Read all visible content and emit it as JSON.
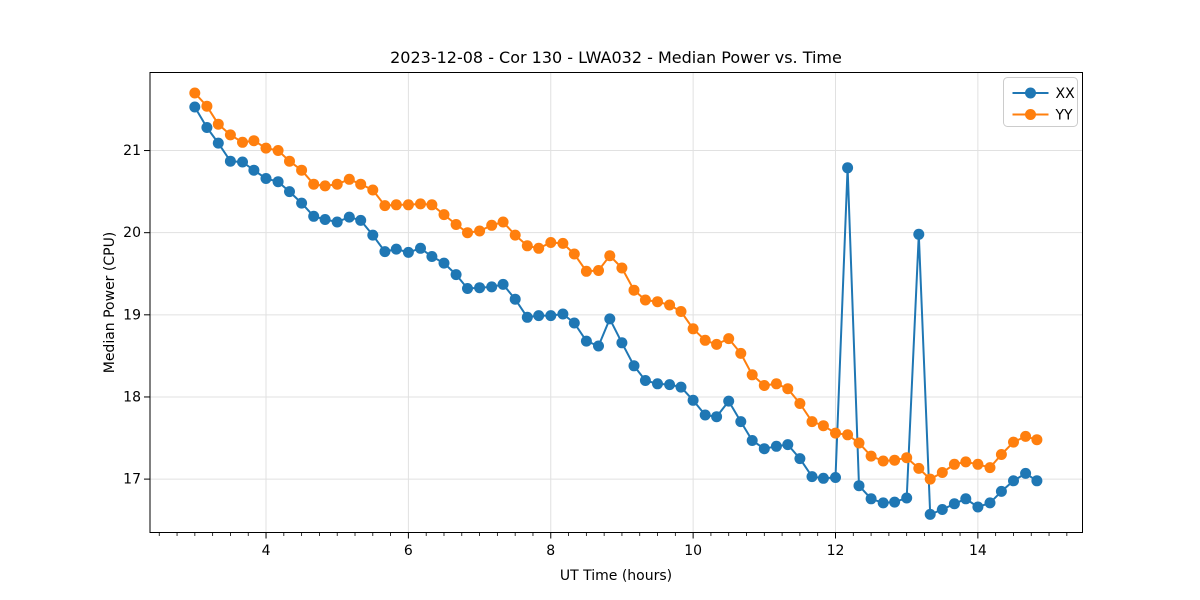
{
  "page": {
    "background": "#ffffff"
  },
  "chart_data": {
    "type": "line",
    "title": "2023-12-08 - Cor 130 - LWA032 - Median Power vs. Time",
    "xlabel": "UT Time (hours)",
    "ylabel": "Median Power (CPU)",
    "xlim": [
      2.37,
      15.47
    ],
    "ylim": [
      16.35,
      21.95
    ],
    "xticks": [
      4,
      6,
      8,
      10,
      12,
      14
    ],
    "yticks": [
      17,
      18,
      19,
      20,
      21
    ],
    "x_minor_step": 0.25,
    "grid": true,
    "grid_color": "#e1e1e1",
    "legend": {
      "position": "upper right",
      "entries": [
        "XX",
        "YY"
      ]
    },
    "x": [
      3.0,
      3.17,
      3.33,
      3.5,
      3.67,
      3.83,
      4.0,
      4.17,
      4.33,
      4.5,
      4.67,
      4.83,
      5.0,
      5.17,
      5.33,
      5.5,
      5.67,
      5.83,
      6.0,
      6.17,
      6.33,
      6.5,
      6.67,
      6.83,
      7.0,
      7.17,
      7.33,
      7.5,
      7.67,
      7.83,
      8.0,
      8.17,
      8.33,
      8.5,
      8.67,
      8.83,
      9.0,
      9.17,
      9.33,
      9.5,
      9.67,
      9.83,
      10.0,
      10.17,
      10.33,
      10.5,
      10.67,
      10.83,
      11.0,
      11.17,
      11.33,
      11.5,
      11.67,
      11.83,
      12.0,
      12.17,
      12.33,
      12.5,
      12.67,
      12.83,
      13.0,
      13.17,
      13.33,
      13.5,
      13.67,
      13.83,
      14.0,
      14.17,
      14.33,
      14.5,
      14.67,
      14.83
    ],
    "series": [
      {
        "name": "XX",
        "color": "#1f77b4",
        "marker": "circle",
        "values": [
          21.53,
          21.28,
          21.09,
          20.87,
          20.86,
          20.76,
          20.66,
          20.62,
          20.5,
          20.36,
          20.2,
          20.16,
          20.13,
          20.19,
          20.15,
          19.97,
          19.77,
          19.8,
          19.76,
          19.81,
          19.71,
          19.63,
          19.49,
          19.32,
          19.33,
          19.34,
          19.37,
          19.19,
          18.97,
          18.99,
          18.99,
          19.01,
          18.9,
          18.68,
          18.62,
          18.95,
          18.66,
          18.38,
          18.2,
          18.16,
          18.15,
          18.12,
          17.96,
          17.78,
          17.76,
          17.95,
          17.7,
          17.47,
          17.37,
          17.4,
          17.42,
          17.25,
          17.03,
          17.01,
          17.02,
          20.79,
          16.92,
          16.76,
          16.71,
          16.72,
          16.77,
          19.98,
          16.57,
          16.63,
          16.7,
          16.76,
          16.66,
          16.71,
          16.85,
          16.98,
          17.07,
          16.98
        ]
      },
      {
        "name": "YY",
        "color": "#ff7f0e",
        "marker": "circle",
        "values": [
          21.7,
          21.54,
          21.32,
          21.19,
          21.1,
          21.12,
          21.03,
          21.0,
          20.87,
          20.76,
          20.59,
          20.57,
          20.59,
          20.65,
          20.59,
          20.52,
          20.33,
          20.34,
          20.34,
          20.35,
          20.34,
          20.22,
          20.1,
          20.0,
          20.02,
          20.09,
          20.13,
          19.97,
          19.84,
          19.81,
          19.88,
          19.87,
          19.74,
          19.53,
          19.54,
          19.72,
          19.57,
          19.3,
          19.18,
          19.16,
          19.12,
          19.04,
          18.83,
          18.69,
          18.64,
          18.71,
          18.53,
          18.27,
          18.14,
          18.16,
          18.1,
          17.92,
          17.7,
          17.65,
          17.56,
          17.54,
          17.44,
          17.28,
          17.22,
          17.23,
          17.26,
          17.13,
          17.0,
          17.08,
          17.18,
          17.21,
          17.18,
          17.14,
          17.3,
          17.45,
          17.52,
          17.48
        ]
      }
    ]
  }
}
